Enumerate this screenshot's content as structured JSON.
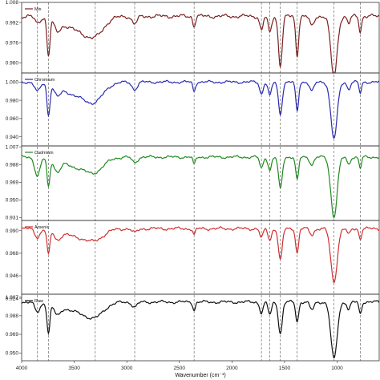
{
  "chart_data": {
    "type": "line",
    "xlabel": "Wavenumber (cm⁻¹)",
    "x_ticks": [
      4000,
      3500,
      3000,
      2500,
      2000,
      1500,
      1000
    ],
    "xlim": [
      4000,
      600
    ],
    "grid": false,
    "reference_lines": [
      3850,
      3745,
      3300,
      2925,
      2360,
      1720,
      1640,
      1540,
      1380,
      1030,
      780
    ],
    "panels": [
      {
        "name": "Mix",
        "color": "#7a2020",
        "ylim": [
          0.952,
          1.008
        ],
        "y_ticks": [
          1.008,
          0.992,
          0.976,
          0.96
        ],
        "baseline": 0.997,
        "peaks": [
          [
            3850,
            0.005,
            25
          ],
          [
            3745,
            0.03,
            14
          ],
          [
            3660,
            0.008,
            30
          ],
          [
            3450,
            0.011,
            150
          ],
          [
            3300,
            0.01,
            80
          ],
          [
            2925,
            0.006,
            25
          ],
          [
            2360,
            0.008,
            12
          ],
          [
            1720,
            0.011,
            16
          ],
          [
            1640,
            0.013,
            16
          ],
          [
            1540,
            0.039,
            18
          ],
          [
            1380,
            0.031,
            14
          ],
          [
            1240,
            0.008,
            20
          ],
          [
            1030,
            0.048,
            30
          ],
          [
            890,
            0.006,
            15
          ],
          [
            780,
            0.012,
            12
          ]
        ]
      },
      {
        "name": "Chromium",
        "color": "#2a2ab0",
        "ylim": [
          0.93,
          1.01
        ],
        "y_ticks": [
          1.0,
          0.98,
          0.96,
          0.94
        ],
        "baseline": 1.0,
        "peaks": [
          [
            3850,
            0.01,
            25
          ],
          [
            3745,
            0.034,
            14
          ],
          [
            3660,
            0.01,
            30
          ],
          [
            3450,
            0.015,
            150
          ],
          [
            3300,
            0.013,
            80
          ],
          [
            2925,
            0.008,
            25
          ],
          [
            2360,
            0.01,
            12
          ],
          [
            1720,
            0.013,
            16
          ],
          [
            1640,
            0.015,
            16
          ],
          [
            1540,
            0.035,
            18
          ],
          [
            1380,
            0.032,
            14
          ],
          [
            1240,
            0.01,
            20
          ],
          [
            1030,
            0.062,
            30
          ],
          [
            890,
            0.008,
            15
          ],
          [
            780,
            0.012,
            12
          ]
        ]
      },
      {
        "name": "Cadmium",
        "color": "#1f8a1f",
        "ylim": [
          0.928,
          1.008
        ],
        "y_ticks": [
          1.007,
          0.988,
          0.969,
          0.95,
          0.931
        ],
        "baseline": 0.996,
        "peaks": [
          [
            3850,
            0.02,
            25
          ],
          [
            3745,
            0.03,
            14
          ],
          [
            3660,
            0.012,
            30
          ],
          [
            3450,
            0.011,
            150
          ],
          [
            3300,
            0.01,
            80
          ],
          [
            2925,
            0.006,
            25
          ],
          [
            2360,
            0.008,
            12
          ],
          [
            1720,
            0.012,
            16
          ],
          [
            1640,
            0.014,
            16
          ],
          [
            1540,
            0.034,
            18
          ],
          [
            1380,
            0.025,
            14
          ],
          [
            1240,
            0.008,
            20
          ],
          [
            1030,
            0.064,
            30
          ],
          [
            890,
            0.008,
            15
          ],
          [
            780,
            0.012,
            12
          ]
        ]
      },
      {
        "name": "Arsenic",
        "color": "#d03030",
        "ylim": [
          0.928,
          1.0
        ],
        "y_ticks": [
          0.99,
          0.968,
          0.946,
          0.924
        ],
        "baseline": 0.992,
        "peaks": [
          [
            3850,
            0.008,
            25
          ],
          [
            3745,
            0.024,
            14
          ],
          [
            3660,
            0.008,
            30
          ],
          [
            3450,
            0.008,
            150
          ],
          [
            3300,
            0.007,
            80
          ],
          [
            2925,
            0.004,
            25
          ],
          [
            2360,
            0.006,
            12
          ],
          [
            1720,
            0.009,
            16
          ],
          [
            1640,
            0.011,
            16
          ],
          [
            1540,
            0.031,
            18
          ],
          [
            1380,
            0.024,
            14
          ],
          [
            1240,
            0.006,
            20
          ],
          [
            1030,
            0.052,
            30
          ],
          [
            890,
            0.006,
            15
          ],
          [
            780,
            0.01,
            12
          ]
        ]
      },
      {
        "name": "Raw",
        "color": "#111111",
        "ylim": [
          0.942,
          1.01
        ],
        "y_ticks": [
          1.007,
          0.988,
          0.969,
          0.95
        ],
        "baseline": 1.002,
        "peaks": [
          [
            3850,
            0.01,
            25
          ],
          [
            3745,
            0.03,
            14
          ],
          [
            3660,
            0.01,
            30
          ],
          [
            3450,
            0.01,
            150
          ],
          [
            3300,
            0.01,
            80
          ],
          [
            2925,
            0.005,
            25
          ],
          [
            2360,
            0.008,
            12
          ],
          [
            1720,
            0.011,
            16
          ],
          [
            1640,
            0.013,
            16
          ],
          [
            1540,
            0.032,
            18
          ],
          [
            1380,
            0.02,
            14
          ],
          [
            1240,
            0.008,
            20
          ],
          [
            1030,
            0.058,
            30
          ],
          [
            890,
            0.008,
            15
          ],
          [
            780,
            0.012,
            12
          ]
        ]
      }
    ]
  }
}
